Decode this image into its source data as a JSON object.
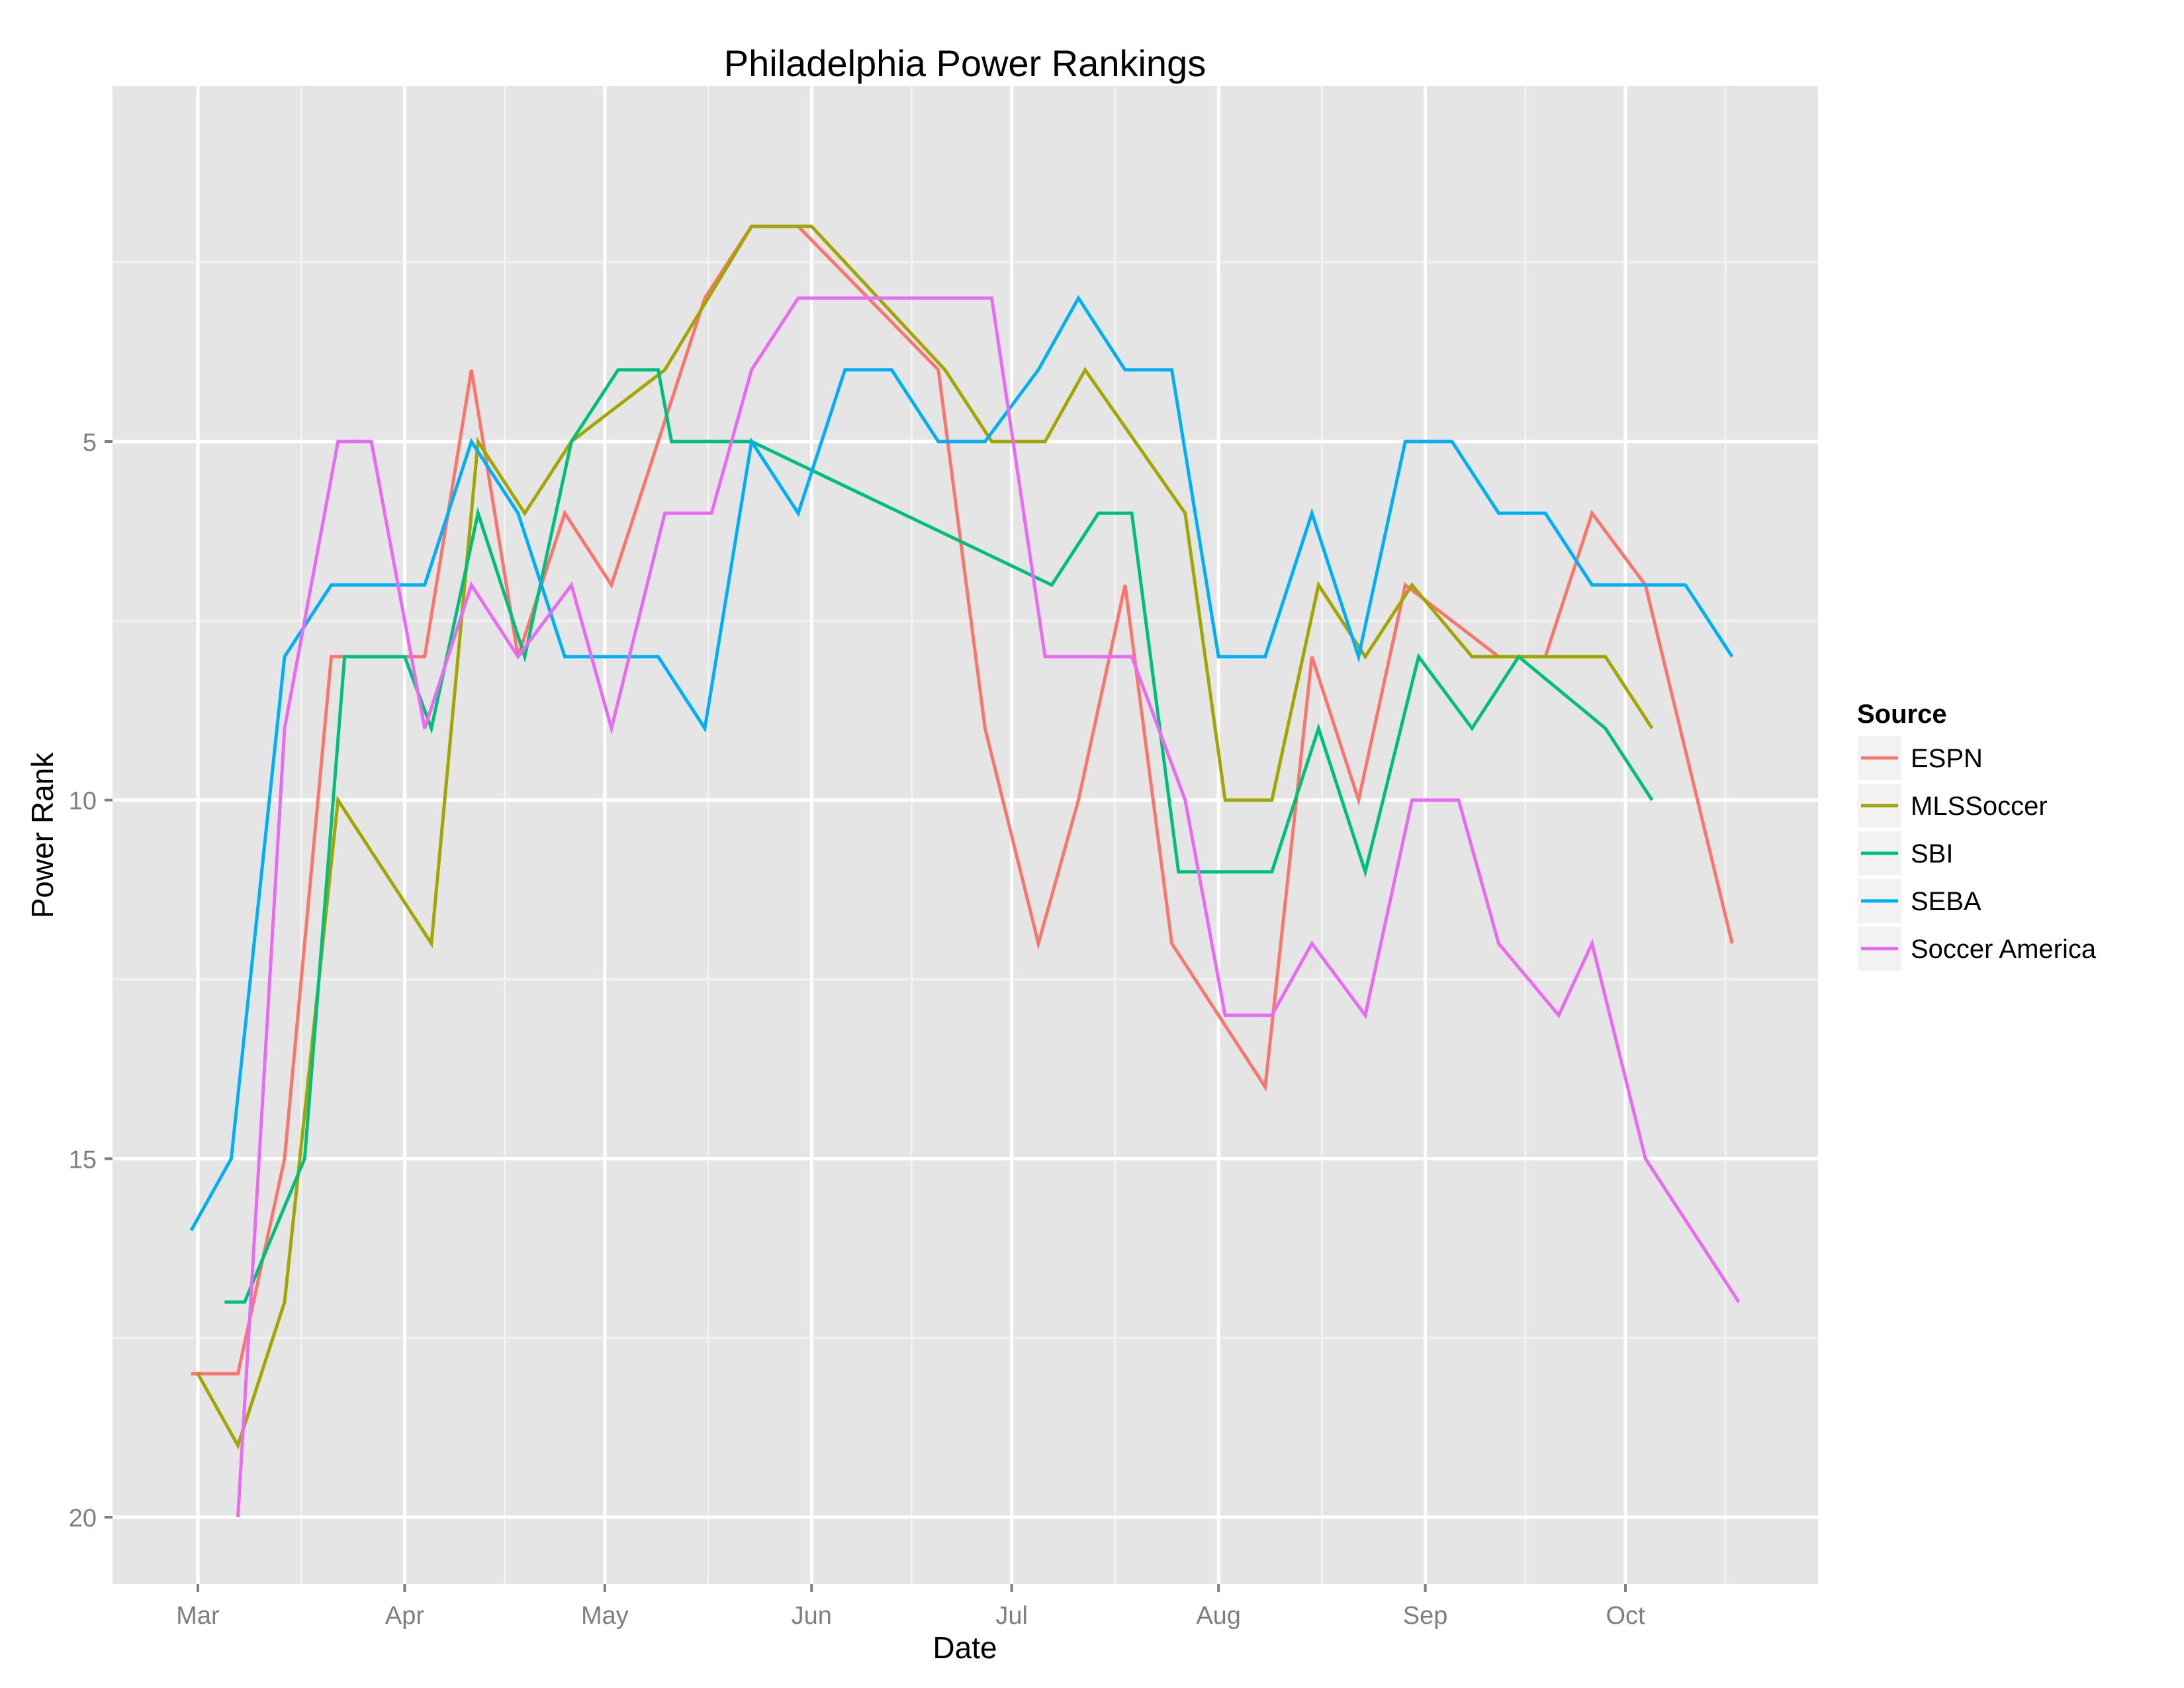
{
  "chart_data": {
    "type": "line",
    "title": "Philadelphia Power Rankings",
    "xlabel": "Date",
    "ylabel": "Power Rank",
    "x_ticks": [
      {
        "label": "Mar",
        "date": "03-01"
      },
      {
        "label": "Apr",
        "date": "04-01"
      },
      {
        "label": "May",
        "date": "05-01"
      },
      {
        "label": "Jun",
        "date": "06-01"
      },
      {
        "label": "Jul",
        "date": "07-01"
      },
      {
        "label": "Aug",
        "date": "08-01"
      },
      {
        "label": "Sep",
        "date": "09-01"
      },
      {
        "label": "Oct",
        "date": "10-01"
      }
    ],
    "y_ticks": [
      5,
      10,
      15,
      20
    ],
    "ylim": [
      0.05,
      20.9
    ],
    "y_reversed": true,
    "xlim": [
      "02-19",
      "10-28"
    ],
    "grid": true,
    "legend": {
      "title": "Source",
      "position": "right"
    },
    "series": [
      {
        "name": "ESPN",
        "color": "#F8766D",
        "points": [
          [
            "02-28",
            18
          ],
          [
            "03-07",
            18
          ],
          [
            "03-14",
            15
          ],
          [
            "03-21",
            8
          ],
          [
            "04-04",
            8
          ],
          [
            "04-11",
            4
          ],
          [
            "04-18",
            8
          ],
          [
            "04-25",
            6
          ],
          [
            "05-02",
            7
          ],
          [
            "05-16",
            3
          ],
          [
            "05-23",
            2
          ],
          [
            "05-30",
            2
          ],
          [
            "06-20",
            4
          ],
          [
            "06-27",
            9
          ],
          [
            "07-05",
            12
          ],
          [
            "07-11",
            10
          ],
          [
            "07-18",
            7
          ],
          [
            "07-25",
            12
          ],
          [
            "08-08",
            14
          ],
          [
            "08-15",
            8
          ],
          [
            "08-22",
            10
          ],
          [
            "08-29",
            7
          ],
          [
            "09-12",
            8
          ],
          [
            "09-19",
            8
          ],
          [
            "09-26",
            6
          ],
          [
            "10-04",
            7
          ],
          [
            "10-17",
            12
          ]
        ]
      },
      {
        "name": "MLSSoccer",
        "color": "#A3A500",
        "points": [
          [
            "03-01",
            18
          ],
          [
            "03-07",
            19
          ],
          [
            "03-14",
            17
          ],
          [
            "03-22",
            10
          ],
          [
            "04-05",
            12
          ],
          [
            "04-12",
            5
          ],
          [
            "04-19",
            6
          ],
          [
            "04-26",
            5
          ],
          [
            "05-10",
            4
          ],
          [
            "05-23",
            2
          ],
          [
            "06-01",
            2
          ],
          [
            "06-21",
            4
          ],
          [
            "06-28",
            5
          ],
          [
            "07-06",
            5
          ],
          [
            "07-12",
            4
          ],
          [
            "07-27",
            6
          ],
          [
            "08-02",
            10
          ],
          [
            "08-09",
            10
          ],
          [
            "08-16",
            7
          ],
          [
            "08-23",
            8
          ],
          [
            "08-30",
            7
          ],
          [
            "09-08",
            8
          ],
          [
            "09-28",
            8
          ],
          [
            "10-05",
            9
          ]
        ]
      },
      {
        "name": "SBI",
        "color": "#00BF7D",
        "points": [
          [
            "03-05",
            17
          ],
          [
            "03-08",
            17
          ],
          [
            "03-17",
            15
          ],
          [
            "03-23",
            8
          ],
          [
            "04-01",
            8
          ],
          [
            "04-05",
            9
          ],
          [
            "04-12",
            6
          ],
          [
            "04-19",
            8
          ],
          [
            "04-26",
            5
          ],
          [
            "05-03",
            4
          ],
          [
            "05-09",
            4
          ],
          [
            "05-11",
            5
          ],
          [
            "05-23",
            5
          ],
          [
            "07-07",
            7
          ],
          [
            "07-14",
            6
          ],
          [
            "07-19",
            6
          ],
          [
            "07-26",
            11
          ],
          [
            "08-09",
            11
          ],
          [
            "08-16",
            9
          ],
          [
            "08-23",
            11
          ],
          [
            "08-31",
            8
          ],
          [
            "09-08",
            9
          ],
          [
            "09-15",
            8
          ],
          [
            "09-28",
            9
          ],
          [
            "10-05",
            10
          ]
        ]
      },
      {
        "name": "SEBA",
        "color": "#00B0F6",
        "points": [
          [
            "02-28",
            16
          ],
          [
            "03-06",
            15
          ],
          [
            "03-14",
            8
          ],
          [
            "03-21",
            7
          ],
          [
            "04-04",
            7
          ],
          [
            "04-11",
            5
          ],
          [
            "04-18",
            6
          ],
          [
            "04-25",
            8
          ],
          [
            "05-09",
            8
          ],
          [
            "05-16",
            9
          ],
          [
            "05-23",
            5
          ],
          [
            "05-30",
            6
          ],
          [
            "06-06",
            4
          ],
          [
            "06-13",
            4
          ],
          [
            "06-20",
            5
          ],
          [
            "06-27",
            5
          ],
          [
            "07-05",
            4
          ],
          [
            "07-11",
            3
          ],
          [
            "07-18",
            4
          ],
          [
            "07-25",
            4
          ],
          [
            "08-01",
            8
          ],
          [
            "08-08",
            8
          ],
          [
            "08-15",
            6
          ],
          [
            "08-22",
            8
          ],
          [
            "08-29",
            5
          ],
          [
            "09-05",
            5
          ],
          [
            "09-12",
            6
          ],
          [
            "09-19",
            6
          ],
          [
            "09-26",
            7
          ],
          [
            "10-10",
            7
          ],
          [
            "10-17",
            8
          ]
        ]
      },
      {
        "name": "Soccer America",
        "color": "#E76BF3",
        "points": [
          [
            "03-07",
            20
          ],
          [
            "03-14",
            9
          ],
          [
            "03-22",
            5
          ],
          [
            "03-27",
            5
          ],
          [
            "04-04",
            9
          ],
          [
            "04-11",
            7
          ],
          [
            "04-18",
            8
          ],
          [
            "04-26",
            7
          ],
          [
            "05-02",
            9
          ],
          [
            "05-10",
            6
          ],
          [
            "05-17",
            6
          ],
          [
            "05-23",
            4
          ],
          [
            "05-30",
            3
          ],
          [
            "06-28",
            3
          ],
          [
            "07-06",
            8
          ],
          [
            "07-19",
            8
          ],
          [
            "07-27",
            10
          ],
          [
            "08-02",
            13
          ],
          [
            "08-09",
            13
          ],
          [
            "08-15",
            12
          ],
          [
            "08-23",
            13
          ],
          [
            "08-30",
            10
          ],
          [
            "09-06",
            10
          ],
          [
            "09-12",
            12
          ],
          [
            "09-21",
            13
          ],
          [
            "09-26",
            12
          ],
          [
            "10-04",
            15
          ],
          [
            "10-18",
            17
          ]
        ]
      }
    ]
  }
}
